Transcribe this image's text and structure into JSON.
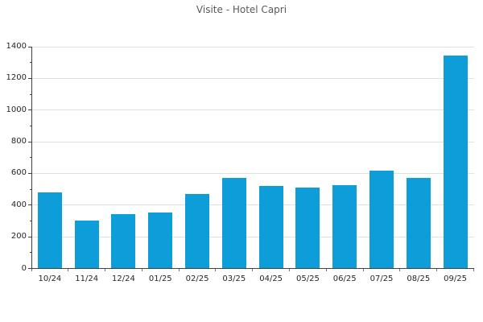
{
  "chart_data": {
    "type": "bar",
    "title": "Visite - Hotel Capri",
    "categories": [
      "10/24",
      "11/24",
      "12/24",
      "01/25",
      "02/25",
      "03/25",
      "04/25",
      "05/25",
      "06/25",
      "07/25",
      "08/25",
      "09/25"
    ],
    "values": [
      480,
      300,
      345,
      355,
      470,
      570,
      520,
      510,
      525,
      615,
      570,
      1345
    ],
    "xlabel": "",
    "ylabel": "",
    "ylim": [
      0,
      1400
    ],
    "ytick_step": 200,
    "y_minor_tick_step": 100,
    "y_tick_labels": [
      "0",
      "200",
      "400",
      "600",
      "800",
      "1000",
      "1200",
      "1400"
    ],
    "grid": "horizontal-major-only",
    "legend": "none",
    "colors": {
      "bar": "#0d9ed9",
      "gridline": "#e0e0e0",
      "axis_line": "#404040",
      "x_boundary_tick": "#737373",
      "tick_label": "#262626",
      "title": "#595959",
      "background": "#ffffff"
    }
  }
}
